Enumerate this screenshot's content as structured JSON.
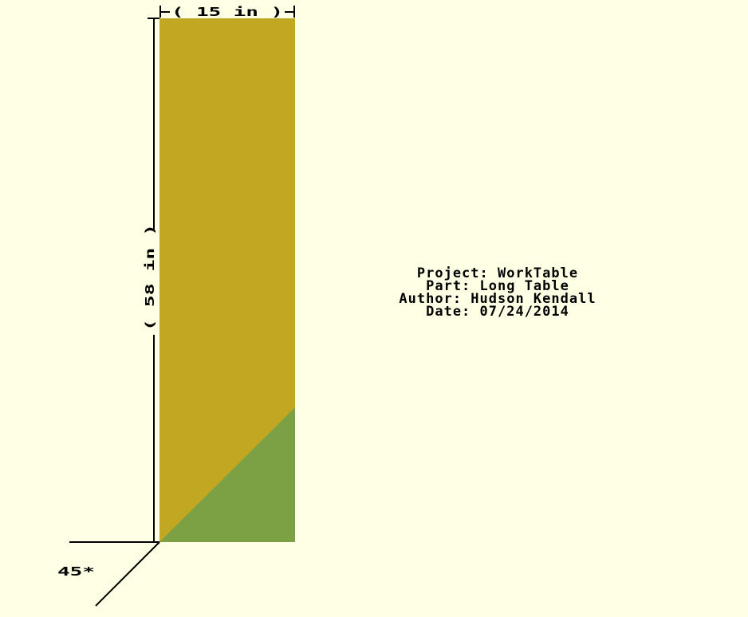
{
  "colors": {
    "background": "#ffffe5",
    "part_face": "#c2a723",
    "part_corner": "#7ca145",
    "lines": "#000000"
  },
  "dimensions": {
    "width_label": "( 15 in )",
    "height_label": "( 58 in )",
    "angle_label": "45*"
  },
  "title_block": {
    "project": "Project: WorkTable",
    "part": "Part: Long Table",
    "author": "Author: Hudson Kendall",
    "date": "Date: 07/24/2014"
  }
}
